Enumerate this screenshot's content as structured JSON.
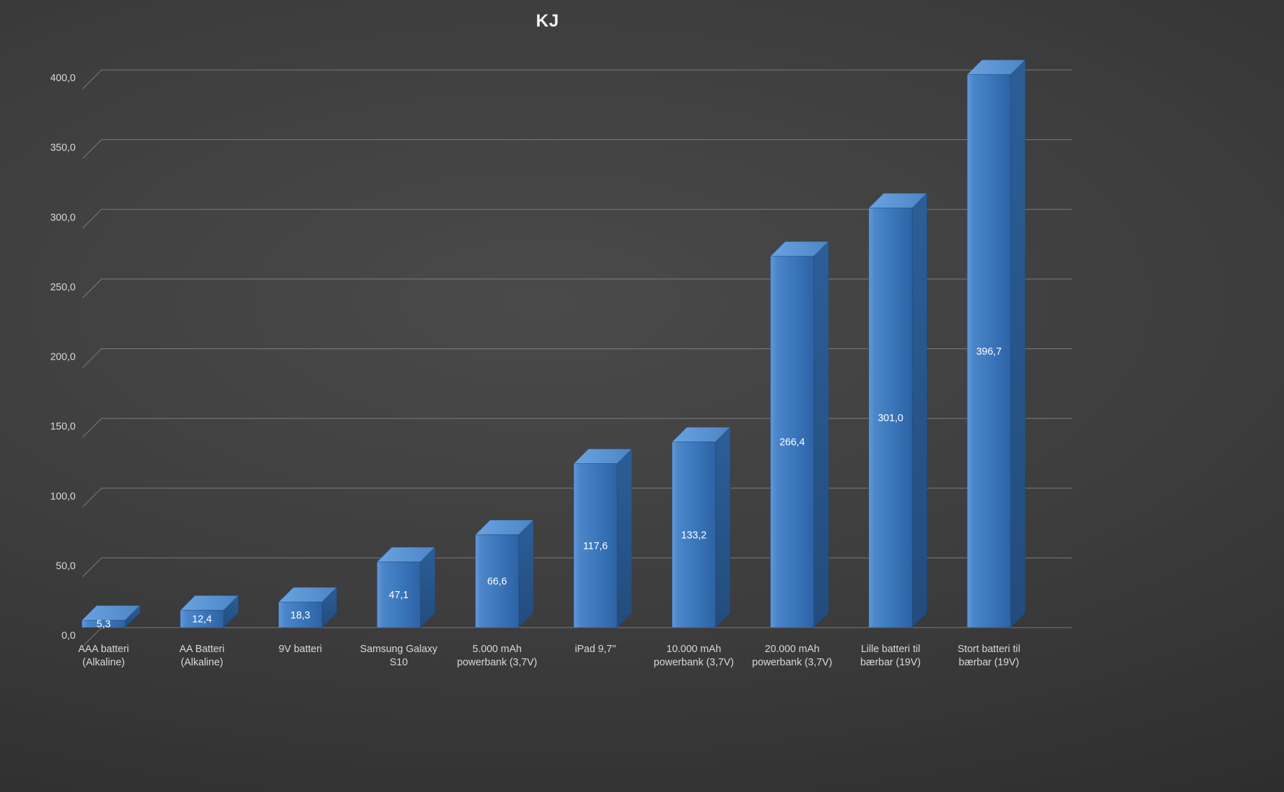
{
  "chart": {
    "title": "KJ",
    "colors": {
      "background_center": "#4a4a4a",
      "background_edge": "#232323",
      "bar_front_light": "#6099da",
      "bar_front_mid": "#3a76bb",
      "bar_front_dark": "#2d63a4",
      "bar_side_top": "#2c5e97",
      "bar_side_bottom": "#224c7c",
      "bar_top_light": "#6ba3e1",
      "bar_top_dark": "#4b85c5",
      "bar_edge": "#1c406e",
      "gridline": "#8f8f8f",
      "tick_text": "#d9d9d9",
      "category_text": "#d9d9d9",
      "value_text": "#ffffff",
      "title_text": "#f2f2f2"
    }
  },
  "chart_data": {
    "type": "bar",
    "style": "3d-column",
    "title": "KJ",
    "categories": [
      "AAA batteri\n(Alkaline)",
      "AA Batteri\n(Alkaline)",
      "9V batteri",
      "Samsung Galaxy\nS10",
      "5.000 mAh\npowerbank (3,7V)",
      "iPad 9,7''",
      "10.000 mAh\npowerbank (3,7V)",
      "20.000 mAh\npowerbank (3,7V)",
      "Lille batteri til\nbærbar (19V)",
      "Stort batteri til\nbærbar (19V)"
    ],
    "values": [
      5.3,
      12.4,
      18.3,
      47.1,
      66.6,
      117.6,
      133.2,
      266.4,
      301.0,
      396.7
    ],
    "value_labels": [
      "5,3",
      "12,4",
      "18,3",
      "47,1",
      "66,6",
      "117,6",
      "133,2",
      "266,4",
      "301,0",
      "396,7"
    ],
    "y_ticks": [
      "0,0",
      "50,0",
      "100,0",
      "150,0",
      "200,0",
      "250,0",
      "300,0",
      "350,0",
      "400,0"
    ],
    "ylim": [
      0,
      400
    ],
    "y_step": 50,
    "xlabel": "",
    "ylabel": "",
    "legend": "none",
    "grid": true
  }
}
